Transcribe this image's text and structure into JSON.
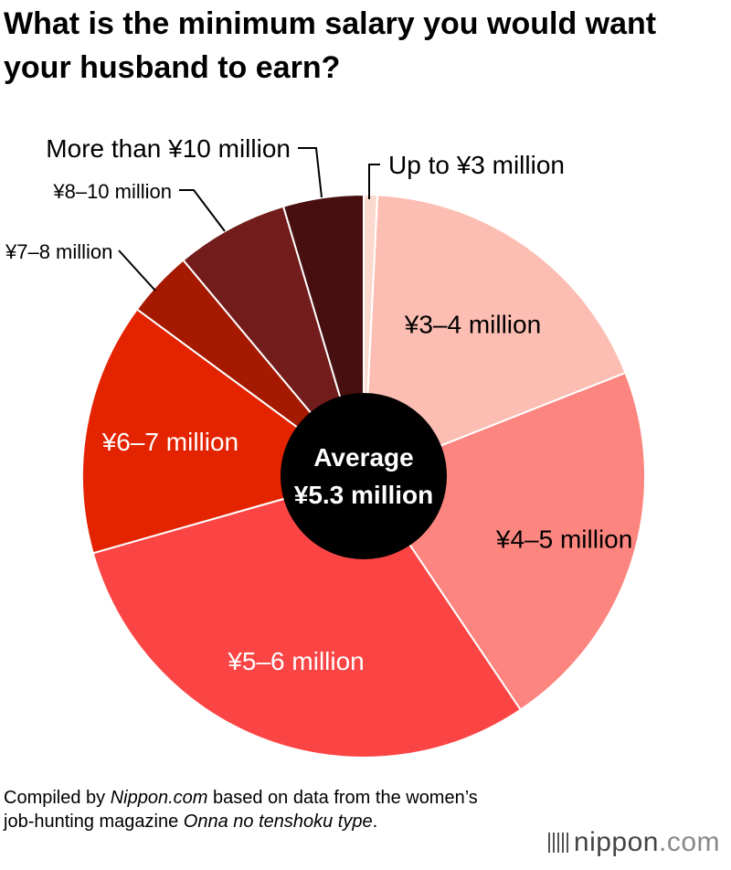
{
  "title": "What is the minimum salary you would want your husband to earn?",
  "center_label": {
    "line1": "Average",
    "line2": "¥5.3 million"
  },
  "source": {
    "prefix": "Compiled by ",
    "publisher": "Nippon.com",
    "middle": " based on data from the women’s job-hunting magazine ",
    "magazine": "Onna no tenshoku type",
    "suffix": "."
  },
  "logo": {
    "brand": "nippon",
    "domain": ".com"
  },
  "colors": {
    "up_to_3": "#fbd9cf",
    "3_4": "#fcbdb2",
    "4_5": "#fc857f",
    "5_6": "#fb4545",
    "6_7": "#e42400",
    "7_8": "#a51900",
    "8_10": "#731c1c",
    "over_10": "#470f0f",
    "center": "#000000"
  },
  "chart_data": {
    "type": "pie",
    "title": "What is the minimum salary you would want your husband to earn?",
    "start": "12 o'clock, clockwise",
    "slices": [
      {
        "label": "Up to ¥3 million",
        "value": 0.8,
        "color": "#fbd9cf",
        "label_style": "callout"
      },
      {
        "label": "¥3–4 million",
        "value": 18.6,
        "color": "#fcbdb2",
        "label_style": "inside"
      },
      {
        "label": "¥4–5 million",
        "value": 22.0,
        "color": "#fc857f",
        "label_style": "inside"
      },
      {
        "label": "¥5–6 million",
        "value": 30.6,
        "color": "#fb4545",
        "label_style": "inside"
      },
      {
        "label": "¥6–7 million",
        "value": 14.8,
        "color": "#e42400",
        "label_style": "inside"
      },
      {
        "label": "¥7–8 million",
        "value": 3.9,
        "color": "#a51900",
        "label_style": "callout"
      },
      {
        "label": "¥8–10 million",
        "value": 6.6,
        "color": "#731c1c",
        "label_style": "callout"
      },
      {
        "label": "More than ¥10 million",
        "value": 4.7,
        "color": "#470f0f",
        "label_style": "callout"
      }
    ]
  }
}
